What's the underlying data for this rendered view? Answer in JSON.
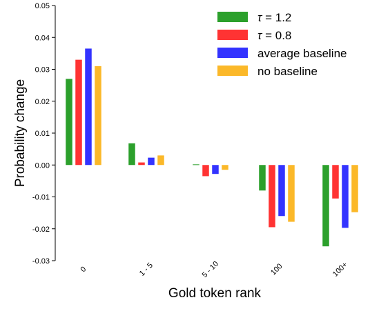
{
  "chart_data": {
    "type": "bar",
    "title": "",
    "xlabel": "Gold token rank",
    "ylabel": "Probability change",
    "categories": [
      "0",
      "1 - 5",
      "5 - 10",
      "100",
      "100+"
    ],
    "ylim": [
      -0.03,
      0.05
    ],
    "yticks": [
      0.05,
      0.04,
      0.03,
      0.02,
      0.01,
      0.0,
      -0.01,
      -0.02,
      -0.03
    ],
    "ytick_labels": [
      "0.05",
      "0.04",
      "0.03",
      "0.02",
      "0.01",
      "0.00",
      "-0.01",
      "-0.02",
      "-0.03"
    ],
    "grid": false,
    "legend_position": "top-right",
    "series": [
      {
        "name": "τ = 1.2",
        "legend_symbol": "τ",
        "legend_value": " = 1.2",
        "color": "#2ca02c",
        "values": [
          0.027,
          0.0068,
          0.0002,
          -0.008,
          -0.0255
        ]
      },
      {
        "name": "τ = 0.8",
        "legend_symbol": "τ",
        "legend_value": " = 0.8",
        "color": "#ff3333",
        "values": [
          0.033,
          0.0008,
          -0.0035,
          -0.0195,
          -0.0105
        ]
      },
      {
        "name": "average baseline",
        "color": "#3333ff",
        "values": [
          0.0365,
          0.0023,
          -0.0028,
          -0.016,
          -0.0197
        ]
      },
      {
        "name": "no baseline",
        "color": "#fbb829",
        "values": [
          0.031,
          0.003,
          -0.0015,
          -0.0178,
          -0.0148
        ]
      }
    ]
  }
}
